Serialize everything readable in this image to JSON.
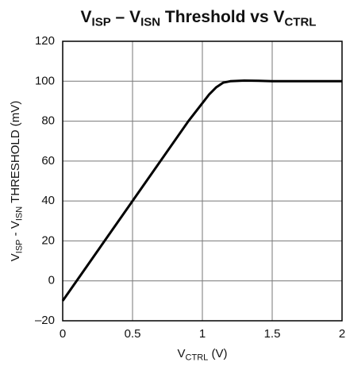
{
  "chart_data": {
    "type": "line",
    "title": [
      "V",
      "ISP",
      " – V",
      "ISN",
      " Threshold vs V",
      "CTRL"
    ],
    "xlabel": [
      "V",
      "CTRL",
      " (V)"
    ],
    "ylabel": [
      "V",
      "ISP",
      " - V",
      "ISN",
      " THRESHOLD (mV)"
    ],
    "x": [
      0,
      0.1,
      0.5,
      0.9,
      1.0,
      1.05,
      1.1,
      1.15,
      1.2,
      1.3,
      1.4,
      1.5,
      2.0
    ],
    "series": [
      {
        "color": "#000000",
        "values": [
          -10,
          0,
          40,
          80,
          89,
          93.5,
          97,
          99.3,
          100,
          100.3,
          100.2,
          100,
          100
        ]
      }
    ],
    "xlim": [
      0,
      2
    ],
    "xticks": [
      0,
      0.5,
      1,
      1.5,
      2
    ],
    "ylim": [
      -20,
      120
    ],
    "yticks": [
      {
        "value": -20,
        "label": "–20"
      },
      0,
      20,
      40,
      60,
      80,
      100,
      120
    ],
    "grid": true
  }
}
